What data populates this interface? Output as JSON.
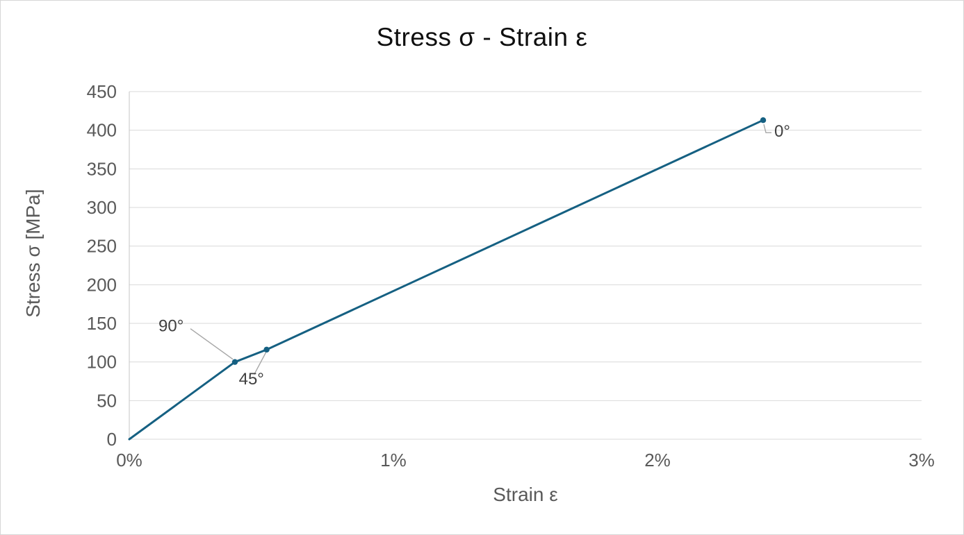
{
  "window": {
    "background": "#ffffff",
    "border_color": "#d6d6d6"
  },
  "chart_data": {
    "type": "line",
    "title": "Stress σ - Strain ε",
    "xlabel": "Strain ε",
    "ylabel": "Stress σ [MPa]",
    "xlim": [
      0,
      3
    ],
    "ylim": [
      0,
      450
    ],
    "grid": "horizontal",
    "legend": "none",
    "x_ticks": [
      {
        "value": 0,
        "label": "0%"
      },
      {
        "value": 1,
        "label": "1%"
      },
      {
        "value": 2,
        "label": "2%"
      },
      {
        "value": 3,
        "label": "3%"
      }
    ],
    "y_ticks": [
      {
        "value": 0,
        "label": "0"
      },
      {
        "value": 50,
        "label": "50"
      },
      {
        "value": 100,
        "label": "100"
      },
      {
        "value": 150,
        "label": "150"
      },
      {
        "value": 200,
        "label": "200"
      },
      {
        "value": 250,
        "label": "250"
      },
      {
        "value": 300,
        "label": "300"
      },
      {
        "value": 350,
        "label": "350"
      },
      {
        "value": 400,
        "label": "400"
      },
      {
        "value": 450,
        "label": "450"
      }
    ],
    "series": [
      {
        "name": "stress-strain curve",
        "color": "#156082",
        "marker": "circle",
        "points": [
          {
            "x": 0,
            "y": 0,
            "marker": false
          },
          {
            "x": 0.4,
            "y": 100,
            "marker": true,
            "label": "90°"
          },
          {
            "x": 0.52,
            "y": 116,
            "marker": true,
            "label": "45°"
          },
          {
            "x": 2.4,
            "y": 413,
            "marker": true,
            "label": "0°"
          }
        ]
      }
    ],
    "annotations": [
      {
        "text": "90°",
        "x": 0.4,
        "y": 100,
        "text_dx": -110,
        "text_dy": -44,
        "leader": [
          [
            -64,
            -48
          ],
          [
            -3,
            -4
          ]
        ]
      },
      {
        "text": "45°",
        "x": 0.52,
        "y": 116,
        "text_dx": -40,
        "text_dy": 50,
        "leader": [
          [
            -18,
            36
          ],
          [
            -1,
            4
          ]
        ]
      },
      {
        "text": "0°",
        "x": 2.4,
        "y": 413,
        "text_dx": 16,
        "text_dy": 24,
        "leader": [
          [
            1,
            6
          ],
          [
            4,
            18
          ],
          [
            12,
            18
          ]
        ]
      }
    ],
    "colors": {
      "line": "#156082",
      "gridline": "#d9d9d9",
      "axis_line": "#c6c6c6",
      "tick_text": "#595959",
      "axis_title_text": "#595959",
      "chart_title_text": "#0f0f0f",
      "annotation_text": "#404040",
      "leader_line": "#a6a6a6"
    }
  }
}
